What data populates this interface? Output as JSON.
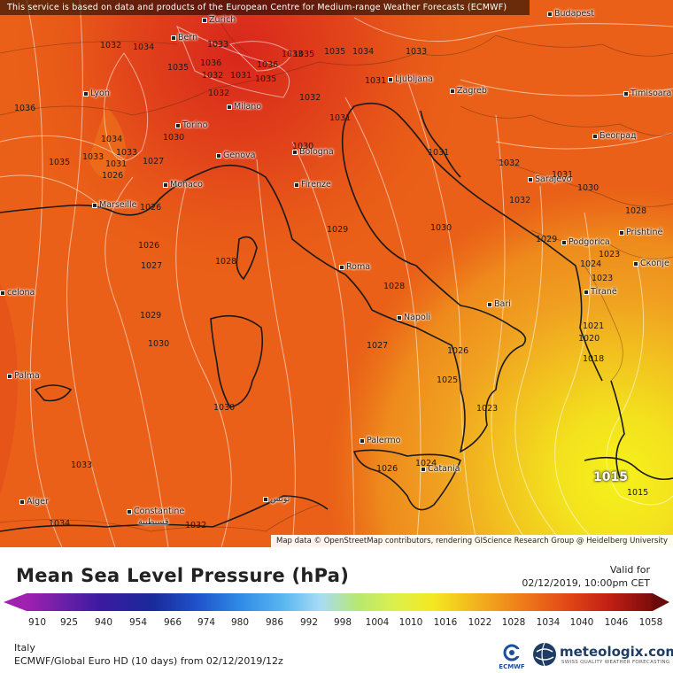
{
  "notice": "This service is based on data and products of the European Centre for Medium-range Weather Forecasts (ECMWF)",
  "attribution": "Map data © OpenStreetMap contributors, rendering GIScience Research Group @ Heidelberg University",
  "title": "Mean Sea Level Pressure (hPa)",
  "valid_label": "Valid for",
  "valid_time": "02/12/2019, 10:00pm CET",
  "region": "Italy",
  "model": "ECMWF/Global Euro HD (10 days) from 02/12/2019/12z",
  "ecmwf_label": "ECMWF",
  "brand_name": "meteologix.com",
  "brand_tagline": "SWISS QUALITY WEATHER FORECASTING",
  "scale_ticks": [
    "910",
    "925",
    "940",
    "954",
    "966",
    "974",
    "980",
    "986",
    "992",
    "998",
    "1004",
    "1010",
    "1016",
    "1022",
    "1028",
    "1034",
    "1040",
    "1046",
    "1058"
  ],
  "cities": [
    {
      "name": "Budapest"
    },
    {
      "name": "Zurich"
    },
    {
      "name": "Bern"
    },
    {
      "name": "Lyon"
    },
    {
      "name": "Milano"
    },
    {
      "name": "Ljubljana"
    },
    {
      "name": "Zagreb"
    },
    {
      "name": "Timisoara"
    },
    {
      "name": "Torino"
    },
    {
      "name": "Genova"
    },
    {
      "name": "Bologna"
    },
    {
      "name": "Београд"
    },
    {
      "name": "Monaco"
    },
    {
      "name": "Marseille"
    },
    {
      "name": "Firenze"
    },
    {
      "name": "Sarajevo"
    },
    {
      "name": "Podgorica"
    },
    {
      "name": "Prishtinë"
    },
    {
      "name": "Скопје"
    },
    {
      "name": "Roma"
    },
    {
      "name": "Tiranë"
    },
    {
      "name": "Bari"
    },
    {
      "name": "celona"
    },
    {
      "name": "Napoli"
    },
    {
      "name": "Palma"
    },
    {
      "name": "Palermo"
    },
    {
      "name": "Catania"
    },
    {
      "name": "Alger"
    },
    {
      "name": "تونس"
    },
    {
      "name": "Constantine"
    },
    {
      "name": "قسنطينة"
    }
  ],
  "isobar_labels": [
    "1032",
    "1034",
    "1033",
    "1035",
    "1036",
    "1032",
    "1031",
    "1033",
    "1035",
    "1034",
    "1033",
    "1031",
    "1032",
    "1035",
    "1035",
    "1036",
    "1036",
    "1032",
    "1030",
    "1034",
    "1033",
    "1035",
    "1033",
    "1031",
    "1031",
    "1031",
    "1027",
    "1026",
    "1030",
    "1032",
    "1031",
    "1026",
    "1032",
    "1030",
    "1028",
    "1029",
    "1030",
    "1026",
    "1027",
    "1028",
    "1029",
    "1024",
    "1023",
    "1028",
    "1023",
    "1029",
    "1021",
    "1030",
    "1027",
    "1026",
    "1020",
    "1018",
    "1025",
    "1023",
    "1030",
    "1024",
    "1026",
    "1033",
    "1034",
    "1032",
    "1015"
  ],
  "low_center": "1015"
}
